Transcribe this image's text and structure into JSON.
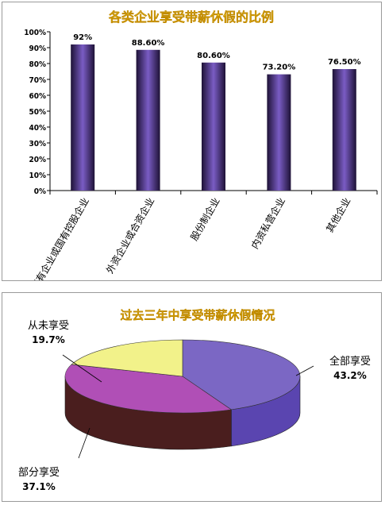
{
  "chart_data": [
    {
      "type": "bar",
      "title": "各类企业享受带薪休假的比例",
      "categories": [
        "国有企业或国有控股企业",
        "外资企业或合资企业",
        "股份制企业",
        "内资私营企业",
        "其他企业"
      ],
      "values": [
        92,
        88.6,
        80.6,
        73.2,
        76.5
      ],
      "data_labels": [
        "92%",
        "88.60%",
        "80.60%",
        "73.20%",
        "76.50%"
      ],
      "yticks": [
        "0%",
        "10%",
        "20%",
        "30%",
        "40%",
        "50%",
        "60%",
        "70%",
        "80%",
        "90%",
        "100%"
      ],
      "ylim": [
        0,
        100
      ],
      "grid": false,
      "colors": {
        "bar_light": "#7a5cc4",
        "bar_dark": "#1e1236",
        "title": "#f5c400"
      }
    },
    {
      "type": "pie",
      "title": "过去三年中享受带薪休假情况",
      "slices": [
        {
          "label": "全部享受",
          "value": 43.2,
          "value_label": "43.2%",
          "top": "#7b67c4",
          "side": "#5a45b0"
        },
        {
          "label": "部分享受",
          "value": 37.1,
          "value_label": "37.1%",
          "top": "#b04fb6",
          "side": "#4a1e1e"
        },
        {
          "label": "从未享受",
          "value": 19.7,
          "value_label": "19.7%",
          "top": "#f2f28a",
          "side": "#8f8f3a"
        }
      ],
      "colors": {
        "title": "#f5c400"
      }
    }
  ]
}
